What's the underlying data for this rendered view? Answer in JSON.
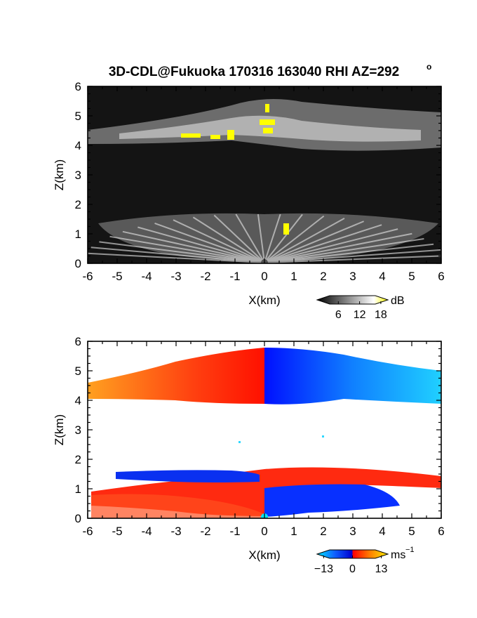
{
  "chart_data": [
    {
      "type": "heatmap",
      "title": "3D-CDL@Fukuoka 170316 163040 RHI AZ=292",
      "title_superscript": "o",
      "xlabel": "X(km)",
      "ylabel": "Z(km)",
      "xlim": [
        -6,
        6
      ],
      "ylim": [
        0,
        6
      ],
      "x_ticks": [
        "-6",
        "-5",
        "-4",
        "-3",
        "-2",
        "-1",
        "0",
        "1",
        "2",
        "3",
        "4",
        "5",
        "6"
      ],
      "y_ticks": [
        "0",
        "1",
        "2",
        "3",
        "4",
        "5",
        "6"
      ],
      "grid": false,
      "colorbar": {
        "unit": "dB",
        "ticks": [
          "6",
          "12",
          "18"
        ],
        "colors": [
          "#000000",
          "#ffffff",
          "#ffff00"
        ],
        "range": [
          0,
          20
        ]
      }
    },
    {
      "type": "heatmap",
      "xlabel": "X(km)",
      "ylabel": "Z(km)",
      "xlim": [
        -6,
        6
      ],
      "ylim": [
        0,
        6
      ],
      "x_ticks": [
        "-6",
        "-5",
        "-4",
        "-3",
        "-2",
        "-1",
        "0",
        "1",
        "2",
        "3",
        "4",
        "5",
        "6"
      ],
      "y_ticks": [
        "0",
        "1",
        "2",
        "3",
        "4",
        "5",
        "6"
      ],
      "grid": false,
      "colorbar": {
        "unit": "ms",
        "unit_superscript": "−1",
        "ticks": [
          "−13",
          "0",
          "13"
        ],
        "colors": [
          "#00e5ff",
          "#1060ff",
          "#0000d0",
          "#ff0000",
          "#ff8000",
          "#ffee00"
        ],
        "range": [
          -16,
          16
        ]
      }
    }
  ]
}
